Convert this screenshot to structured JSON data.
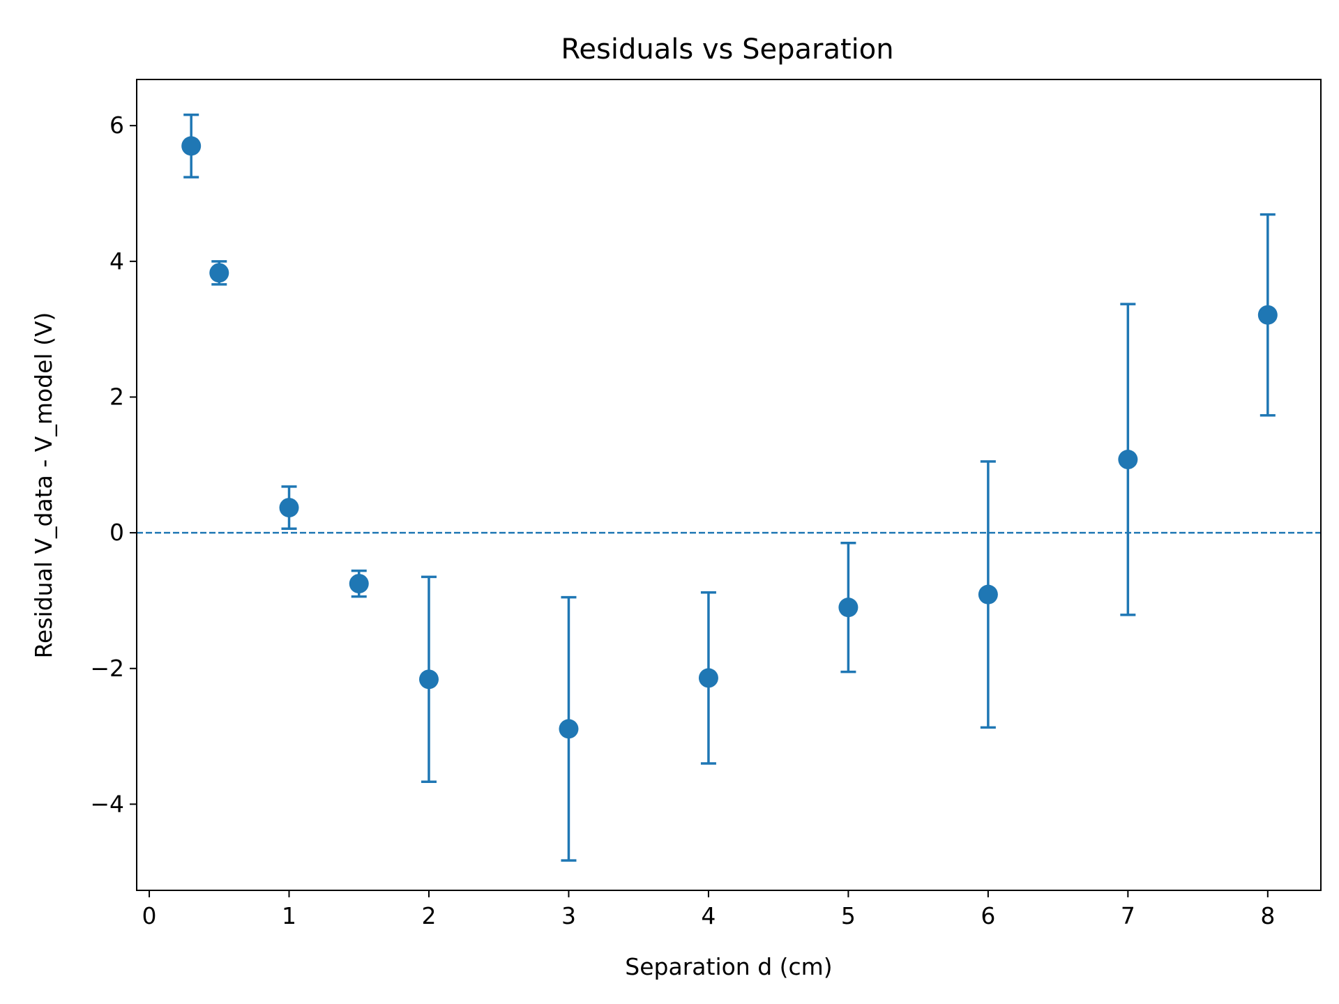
{
  "chart_data": {
    "type": "scatter",
    "title": "Residuals vs Separation",
    "xlabel": "Separation d (cm)",
    "ylabel": "Residual V_data - V_model (V)",
    "xlim": [
      -0.09,
      8.38
    ],
    "ylim": [
      -5.27,
      6.68
    ],
    "xticks": [
      0,
      1,
      2,
      3,
      4,
      5,
      6,
      7,
      8
    ],
    "yticks": [
      -4,
      -2,
      0,
      2,
      4,
      6
    ],
    "xtick_labels": [
      "0",
      "1",
      "2",
      "3",
      "4",
      "5",
      "6",
      "7",
      "8"
    ],
    "ytick_labels": [
      "−4",
      "−2",
      "0",
      "2",
      "4",
      "6"
    ],
    "reference_line": {
      "y": 0,
      "style": "dashed"
    },
    "grid": false,
    "color": "#1f77b4",
    "points": [
      {
        "x": 0.3,
        "y": 5.7,
        "err": 0.46
      },
      {
        "x": 0.5,
        "y": 3.83,
        "err": 0.17
      },
      {
        "x": 1.0,
        "y": 0.37,
        "err": 0.31
      },
      {
        "x": 1.5,
        "y": -0.75,
        "err": 0.19
      },
      {
        "x": 2.0,
        "y": -2.16,
        "err": 1.51
      },
      {
        "x": 3.0,
        "y": -2.89,
        "err": 1.94
      },
      {
        "x": 4.0,
        "y": -2.14,
        "err": 1.26
      },
      {
        "x": 5.0,
        "y": -1.1,
        "err": 0.95
      },
      {
        "x": 6.0,
        "y": -0.91,
        "err": 1.96
      },
      {
        "x": 7.0,
        "y": 1.08,
        "err": 2.29
      },
      {
        "x": 8.0,
        "y": 3.21,
        "err": 1.48
      }
    ]
  }
}
